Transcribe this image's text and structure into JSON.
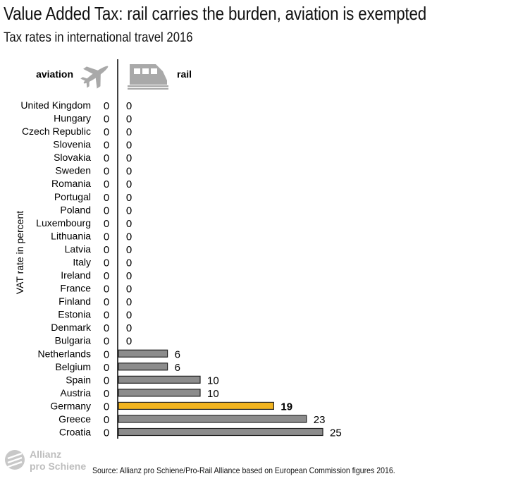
{
  "title": "Value Added Tax: rail carries the burden, aviation is exempted",
  "subtitle": "Tax rates in international travel 2016",
  "source": "Source: Allianz pro Schiene/Pro-Rail Alliance based on European Commission figures 2016.",
  "logo": {
    "line1": "Allianz",
    "line2": "pro Schiene"
  },
  "colors": {
    "bar": "#8c8c8c",
    "highlight": "#f2b41f",
    "bar_stroke": "#222222",
    "icon": "#a9a9a9"
  },
  "icons": [
    "airplane-icon",
    "train-icon"
  ],
  "chart_data": {
    "type": "bar",
    "orientation": "horizontal",
    "ylabel": "VAT rate in percent",
    "headers": [
      "aviation",
      "rail"
    ],
    "highlight_category": "Germany",
    "categories": [
      "United Kingdom",
      "Hungary",
      "Czech Republic",
      "Slovenia",
      "Slovakia",
      "Sweden",
      "Romania",
      "Portugal",
      "Poland",
      "Luxembourg",
      "Lithuania",
      "Latvia",
      "Italy",
      "Ireland",
      "France",
      "Finland",
      "Estonia",
      "Denmark",
      "Bulgaria",
      "Netherlands",
      "Belgium",
      "Spain",
      "Austria",
      "Germany",
      "Greece",
      "Croatia"
    ],
    "series": [
      {
        "name": "aviation",
        "values": [
          0,
          0,
          0,
          0,
          0,
          0,
          0,
          0,
          0,
          0,
          0,
          0,
          0,
          0,
          0,
          0,
          0,
          0,
          0,
          0,
          0,
          0,
          0,
          0,
          0,
          0
        ]
      },
      {
        "name": "rail",
        "values": [
          0,
          0,
          0,
          0,
          0,
          0,
          0,
          0,
          0,
          0,
          0,
          0,
          0,
          0,
          0,
          0,
          0,
          0,
          0,
          6,
          6,
          10,
          10,
          19,
          23,
          25
        ]
      }
    ]
  }
}
